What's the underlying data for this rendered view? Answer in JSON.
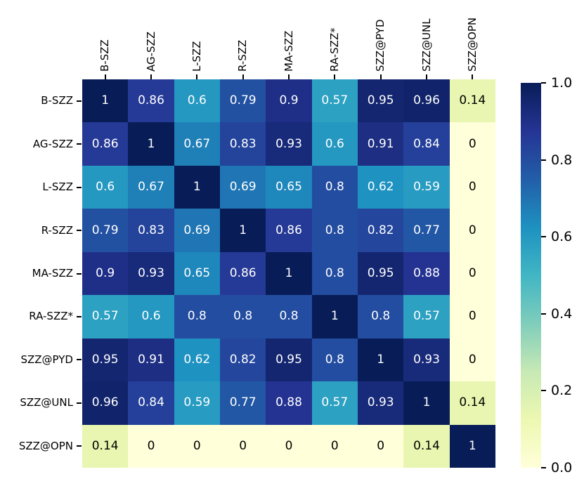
{
  "chart_data": {
    "type": "heatmap",
    "title": "",
    "xlabel": "",
    "ylabel": "",
    "categories": [
      "B-SZZ",
      "AG-SZZ",
      "L-SZZ",
      "R-SZZ",
      "MA-SZZ",
      "RA-SZZ*",
      "SZZ@PYD",
      "SZZ@UNL",
      "SZZ@OPN"
    ],
    "x_tick_labels": [
      "B-SZZ",
      "AG-SZZ",
      "L-SZZ",
      "R-SZZ",
      "MA-SZZ",
      "RA-SZZ*",
      "SZZ@PYD",
      "SZZ@UNL",
      "SZZ@OPN"
    ],
    "y_tick_labels": [
      "B-SZZ",
      "AG-SZZ",
      "L-SZZ",
      "R-SZZ",
      "MA-SZZ",
      "RA-SZZ*",
      "SZZ@PYD",
      "SZZ@UNL",
      "SZZ@OPN"
    ],
    "matrix": [
      [
        1,
        0.86,
        0.6,
        0.79,
        0.9,
        0.57,
        0.95,
        0.96,
        0.14
      ],
      [
        0.86,
        1,
        0.67,
        0.83,
        0.93,
        0.6,
        0.91,
        0.84,
        0
      ],
      [
        0.6,
        0.67,
        1,
        0.69,
        0.65,
        0.8,
        0.62,
        0.59,
        0
      ],
      [
        0.79,
        0.83,
        0.69,
        1,
        0.86,
        0.8,
        0.82,
        0.77,
        0
      ],
      [
        0.9,
        0.93,
        0.65,
        0.86,
        1,
        0.8,
        0.95,
        0.88,
        0
      ],
      [
        0.57,
        0.6,
        0.8,
        0.8,
        0.8,
        1,
        0.8,
        0.57,
        0
      ],
      [
        0.95,
        0.91,
        0.62,
        0.82,
        0.95,
        0.8,
        1,
        0.93,
        0
      ],
      [
        0.96,
        0.84,
        0.59,
        0.77,
        0.88,
        0.57,
        0.93,
        1,
        0.14
      ],
      [
        0.14,
        0,
        0,
        0,
        0,
        0,
        0,
        0.14,
        1
      ]
    ],
    "value_range": [
      0.0,
      1.0
    ],
    "grid": false,
    "legend_position": "colorbar-right",
    "colormap": {
      "name": "YlGnBu",
      "stops": [
        {
          "t": 0.0,
          "color": "#ffffd9"
        },
        {
          "t": 0.125,
          "color": "#edf8b1"
        },
        {
          "t": 0.25,
          "color": "#c7e9b4"
        },
        {
          "t": 0.375,
          "color": "#7fcdbb"
        },
        {
          "t": 0.5,
          "color": "#41b6c4"
        },
        {
          "t": 0.625,
          "color": "#1d91c0"
        },
        {
          "t": 0.75,
          "color": "#225ea8"
        },
        {
          "t": 0.875,
          "color": "#253494"
        },
        {
          "t": 1.0,
          "color": "#081d58"
        }
      ]
    },
    "annotation_colors": {
      "light_text": "#ffffff",
      "dark_text": "#000000",
      "light_text_threshold": 0.45
    },
    "colorbar": {
      "tick_labels": [
        "1.0",
        "0.8",
        "0.6",
        "0.4",
        "0.2",
        "0.0"
      ],
      "tick_values": [
        1.0,
        0.8,
        0.6,
        0.4,
        0.2,
        0.0
      ]
    },
    "background_color": "#ffffff",
    "tick_color": "#000000"
  },
  "layout_note": ""
}
